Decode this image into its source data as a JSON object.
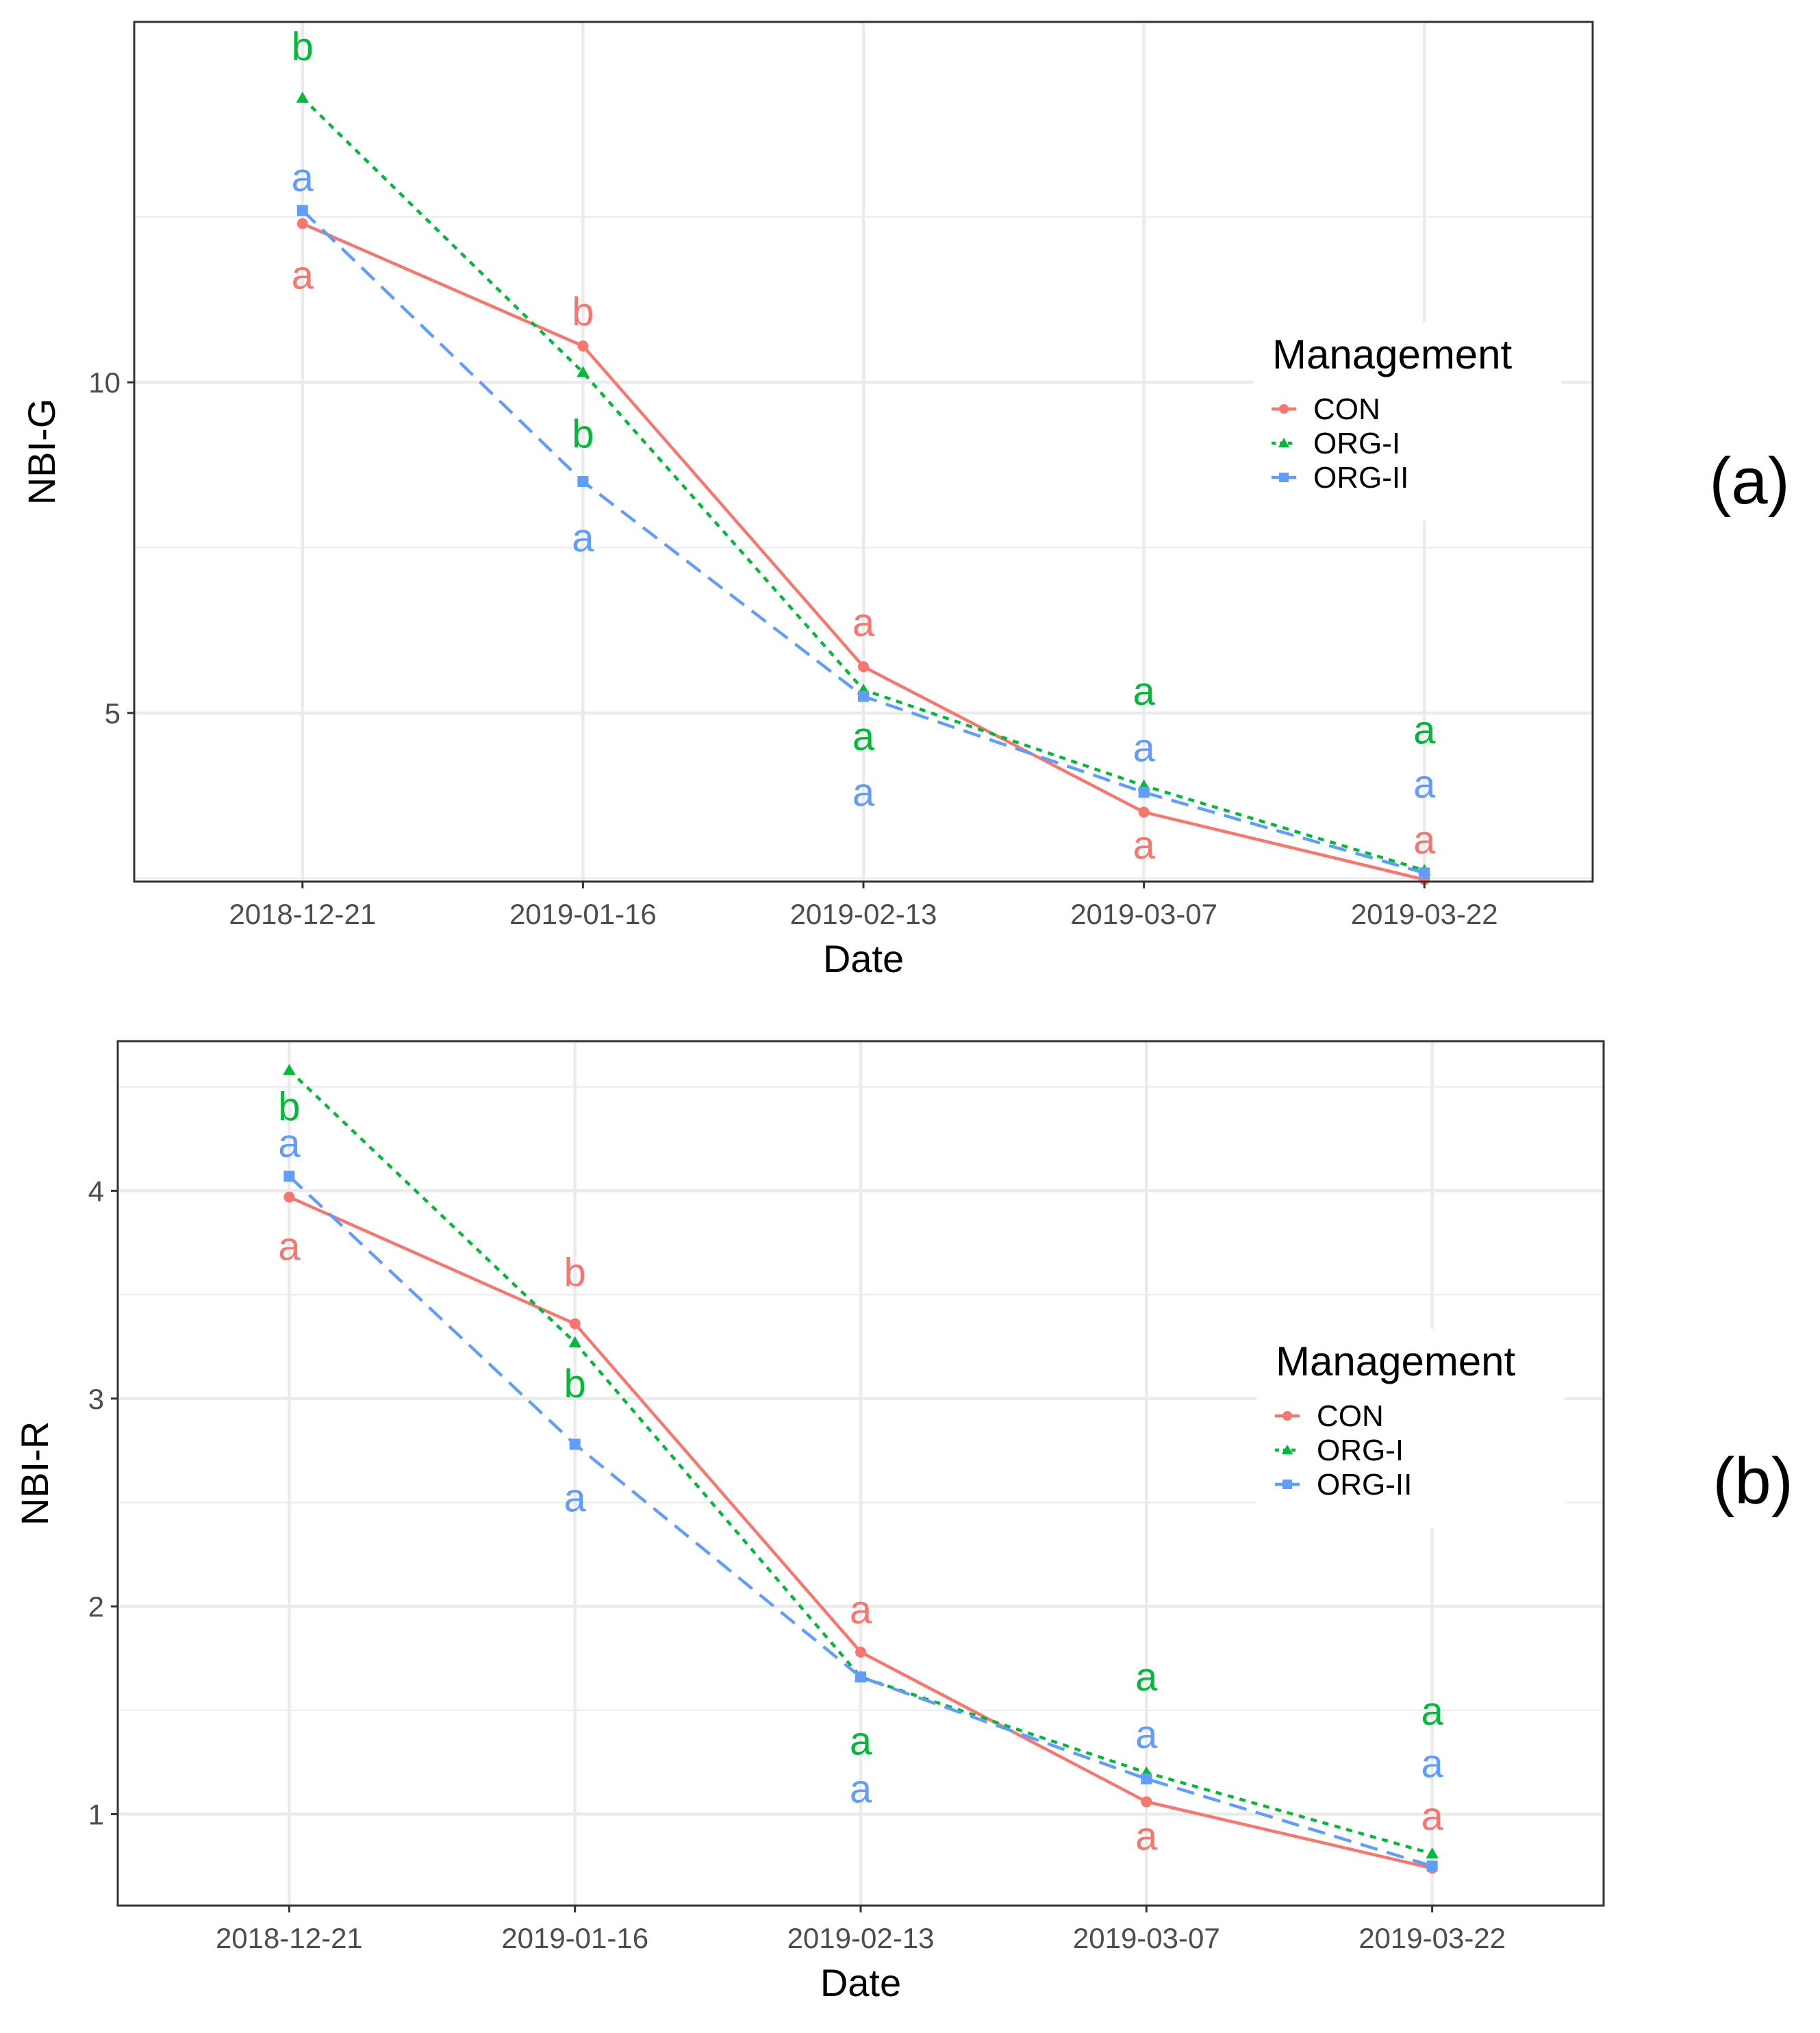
{
  "colors": {
    "CON": "#F8766D",
    "ORG-I": "#00BA38",
    "ORG-II": "#619CFF"
  },
  "chart_data": [
    {
      "type": "line",
      "panel_tag": "(a)",
      "xlabel": "Date",
      "ylabel": "NBI-G",
      "categories": [
        "2018-12-21",
        "2019-01-16",
        "2019-02-13",
        "2019-03-07",
        "2019-03-22"
      ],
      "ylim": [
        2.45,
        15.45
      ],
      "y_major_ticks": [
        5,
        10
      ],
      "y_minor_ticks": [
        2.5,
        7.5,
        12.5
      ],
      "legend": {
        "title": "Management",
        "placement": "right"
      },
      "series": [
        {
          "name": "CON",
          "marker": "circle",
          "dash": "solid",
          "values": [
            12.4,
            10.55,
            5.7,
            3.5,
            2.48
          ],
          "letters": [
            "a",
            "b",
            "a",
            "a",
            "a"
          ]
        },
        {
          "name": "ORG-I",
          "marker": "triangle",
          "dash": "dotted",
          "values": [
            14.3,
            10.15,
            5.35,
            3.9,
            2.62
          ],
          "letters": [
            "b",
            "b",
            "a",
            "a",
            "a"
          ]
        },
        {
          "name": "ORG-II",
          "marker": "square",
          "dash": "dashed",
          "values": [
            12.6,
            8.5,
            5.25,
            3.8,
            2.58
          ],
          "letters": [
            "a",
            "a",
            "a",
            "a",
            "a"
          ]
        }
      ]
    },
    {
      "type": "line",
      "panel_tag": "(b)",
      "xlabel": "Date",
      "ylabel": "NBI-R",
      "categories": [
        "2018-12-21",
        "2019-01-16",
        "2019-02-13",
        "2019-03-07",
        "2019-03-22"
      ],
      "ylim": [
        0.56,
        4.72
      ],
      "y_major_ticks": [
        1,
        2,
        3,
        4
      ],
      "y_minor_ticks": [
        1.5,
        2.5,
        3.5,
        4.5
      ],
      "legend": {
        "title": "Management",
        "placement": "right"
      },
      "series": [
        {
          "name": "CON",
          "marker": "circle",
          "dash": "solid",
          "values": [
            3.97,
            3.36,
            1.78,
            1.06,
            0.74
          ],
          "letters": [
            "a",
            "b",
            "a",
            "a",
            "a"
          ]
        },
        {
          "name": "ORG-I",
          "marker": "triangle",
          "dash": "dotted",
          "values": [
            4.58,
            3.27,
            1.66,
            1.2,
            0.81
          ],
          "letters": [
            "b",
            "b",
            "a",
            "a",
            "a"
          ]
        },
        {
          "name": "ORG-II",
          "marker": "square",
          "dash": "dashed",
          "values": [
            4.07,
            2.78,
            1.66,
            1.17,
            0.75
          ],
          "letters": [
            "a",
            "a",
            "a",
            "a",
            "a"
          ]
        }
      ]
    }
  ]
}
